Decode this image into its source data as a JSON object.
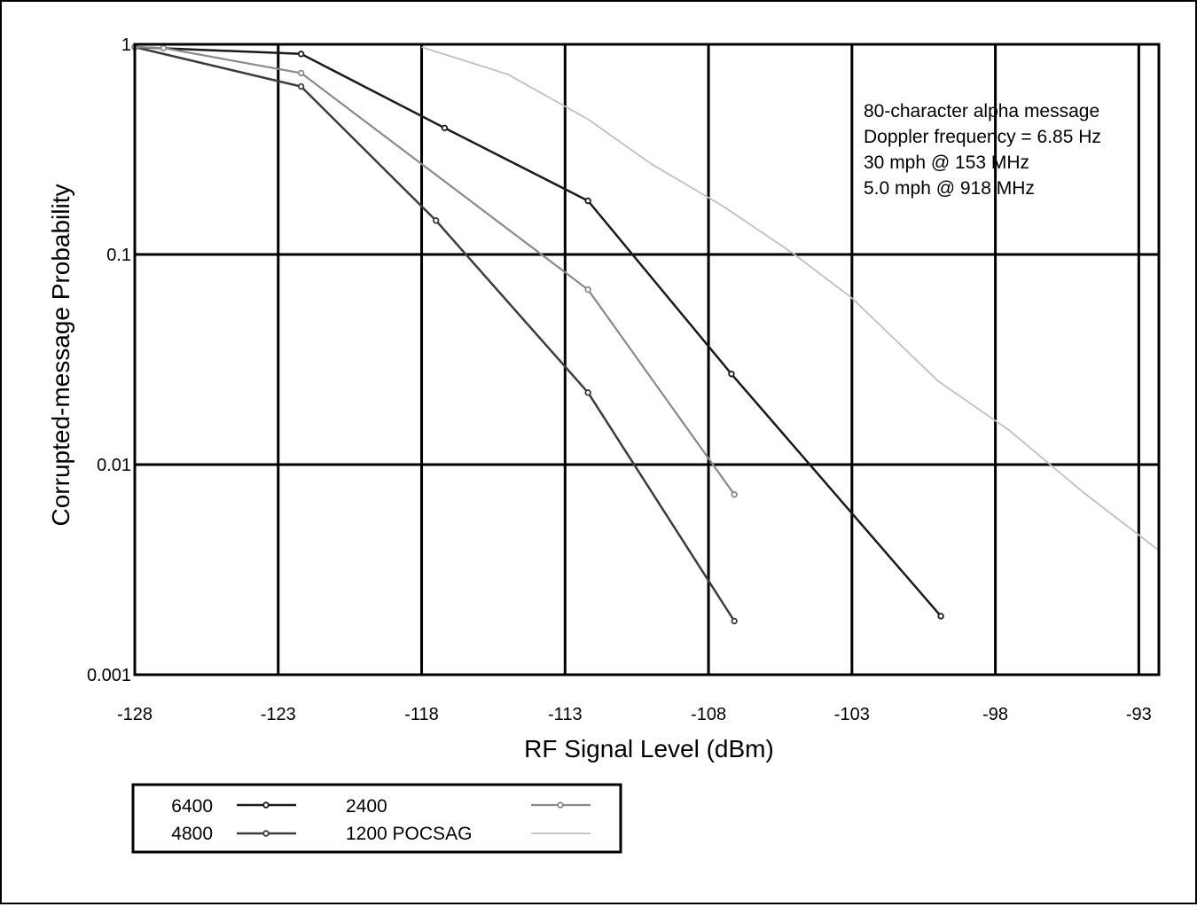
{
  "chart_data": {
    "type": "line",
    "title": "",
    "xlabel": "RF Signal Level (dBm)",
    "ylabel": "Corrupted-message Probability",
    "xlim": [
      -128,
      -92.3
    ],
    "ylim": [
      0.001,
      1
    ],
    "y_scale": "log",
    "grid": true,
    "x_ticks": [
      -128,
      -123,
      -118,
      -113,
      -108,
      -103,
      -98,
      -93
    ],
    "x_tick_labels": [
      "-128",
      "-123",
      "-118",
      "-113",
      "-108",
      "-103",
      "-98",
      "-93"
    ],
    "y_ticks": [
      1,
      0.1,
      0.01,
      0.001
    ],
    "y_tick_labels": [
      "1",
      "0.1",
      "0.01",
      "0.001"
    ],
    "annotation": [
      "80-character alpha message",
      "Doppler frequency = 6.85 Hz",
      "30 mph @ 153 MHz",
      "5.0 mph @ 918 MHz"
    ],
    "legend_position": "bottom-left, below plot",
    "series": [
      {
        "name": "6400",
        "color": "#1a1a1a",
        "x": [
          -128,
          -122.2,
          -117.2,
          -112.2,
          -107.2,
          -99.9
        ],
        "y": [
          0.97,
          0.9,
          0.4,
          0.18,
          0.027,
          0.0019
        ]
      },
      {
        "name": "4800",
        "color": "#3c3c3c",
        "x": [
          -128,
          -122.2,
          -117.5,
          -112.2,
          -107.1
        ],
        "y": [
          0.97,
          0.63,
          0.145,
          0.022,
          0.0018
        ]
      },
      {
        "name": "2400",
        "color": "#8a8a8a",
        "x": [
          -128,
          -127,
          -122.2,
          -112.2,
          -107.1
        ],
        "y": [
          0.97,
          0.96,
          0.73,
          0.068,
          0.0072
        ]
      },
      {
        "name": "1200 POCSAG",
        "color": "#c0c0c0",
        "x": [
          -118,
          -115,
          -112.2,
          -110,
          -107.5,
          -105,
          -103,
          -100,
          -97.5,
          -95,
          -92.3
        ],
        "y": [
          0.97,
          0.72,
          0.44,
          0.27,
          0.17,
          0.1,
          0.062,
          0.025,
          0.0145,
          0.0075,
          0.0039
        ]
      }
    ]
  }
}
